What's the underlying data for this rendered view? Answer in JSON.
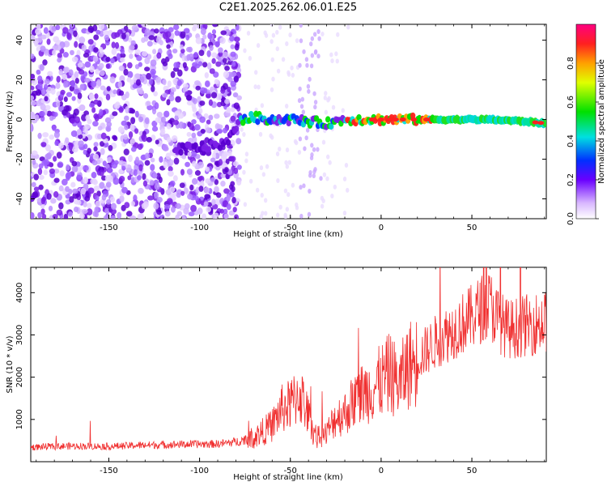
{
  "page_title": "C2E1.2025.262.06.01.E25",
  "chart_data": [
    {
      "type": "heatmap",
      "title": "C2E1.2025.262.06.01.E25",
      "xlabel": "Height of straight line (km)",
      "ylabel": "Frequency (Hz)",
      "xlim": [
        -193,
        91
      ],
      "ylim": [
        -50,
        48
      ],
      "x_ticks": [
        -150,
        -100,
        -50,
        0,
        50
      ],
      "y_ticks": [
        -40,
        -20,
        0,
        20,
        40
      ],
      "colorbar": {
        "label": "Normalized spectral amplitude",
        "range": [
          0.0,
          1.0
        ],
        "ticks": [
          "0.0",
          "0.2",
          "0.4",
          "0.6",
          "0.8"
        ]
      },
      "description_series": [
        {
          "name": "noise_region",
          "x_range": [
            -193,
            -80
          ],
          "level": 0.15
        },
        {
          "name": "signal_track",
          "x": [
            -113,
            -100,
            -85,
            -78,
            -70,
            -60,
            -50,
            -40,
            -30,
            -20,
            -10,
            0,
            10,
            20,
            40,
            60,
            80,
            91
          ],
          "freq": [
            -15,
            -14,
            -12,
            0,
            1,
            0,
            0,
            -1,
            -2,
            0,
            0,
            0,
            0,
            0,
            0,
            0,
            -1,
            -2
          ]
        }
      ]
    },
    {
      "type": "line",
      "xlabel": "Height of straight line (km)",
      "ylabel": "SNR (10 * v/v)",
      "xlim": [
        -193,
        91
      ],
      "ylim": [
        0,
        4600
      ],
      "x_ticks": [
        -150,
        -100,
        -50,
        0,
        50
      ],
      "y_ticks": [
        1000,
        2000,
        3000,
        4000
      ],
      "series": [
        {
          "name": "SNR",
          "color": "#f03030",
          "x": [
            -193,
            -170,
            -150,
            -130,
            -110,
            -90,
            -80,
            -70,
            -60,
            -55,
            -50,
            -45,
            -42,
            -38,
            -35,
            -30,
            -25,
            -20,
            -15,
            -10,
            -5,
            0,
            5,
            10,
            15,
            20,
            25,
            30,
            40,
            50,
            55,
            60,
            65,
            70,
            80,
            91
          ],
          "y": [
            350,
            380,
            370,
            400,
            420,
            430,
            480,
            600,
            900,
            1300,
            1400,
            1700,
            1400,
            800,
            600,
            700,
            1100,
            1200,
            1500,
            1700,
            1800,
            2000,
            2200,
            1900,
            2400,
            2500,
            2700,
            2900,
            3200,
            3500,
            3700,
            3800,
            3400,
            3200,
            3300,
            3400
          ]
        }
      ]
    }
  ],
  "colors": {
    "snr_line": "#f03030",
    "noise": "#7a1fe6"
  }
}
